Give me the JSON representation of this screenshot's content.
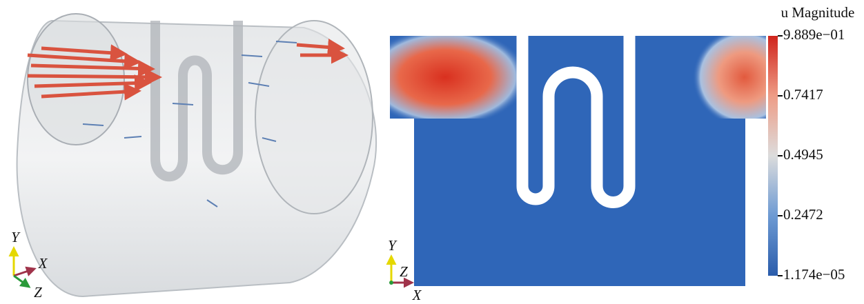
{
  "colorbar": {
    "title": "u Magnitude",
    "range": [
      1.174e-05,
      0.9889
    ],
    "ticks": [
      {
        "value": 0.9889,
        "label": "9.889e−01"
      },
      0.7417,
      0.4945,
      0.2472,
      {
        "value": 1.174e-05,
        "label": "1.174e−05"
      }
    ]
  },
  "left_axes": {
    "y": "Y",
    "x": "X",
    "z": "Z"
  },
  "right_axes": {
    "y": "Y",
    "x": "X",
    "z": "Z"
  }
}
